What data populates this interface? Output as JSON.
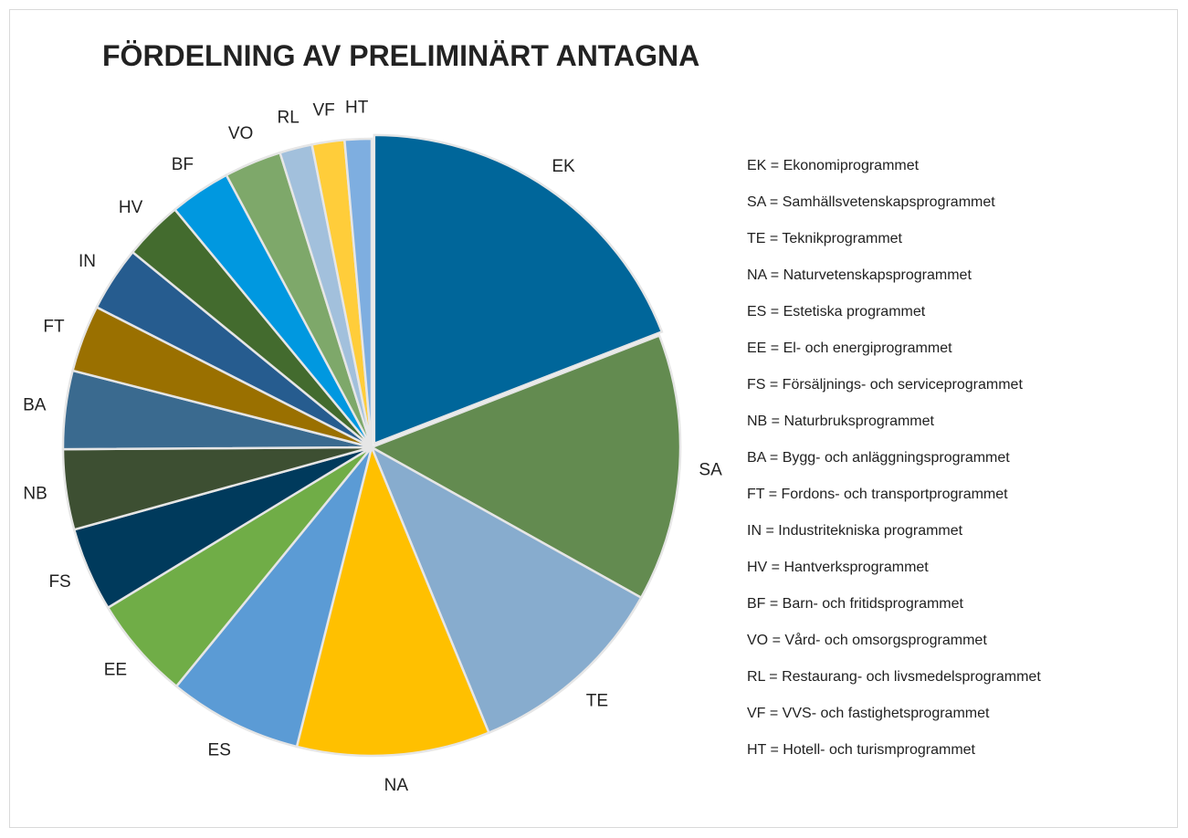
{
  "chart_data": {
    "type": "pie",
    "title": "FÖRDELNING AV PRELIMINÄRT ANTAGNA",
    "categories": [
      "EK",
      "SA",
      "TE",
      "NA",
      "ES",
      "EE",
      "FS",
      "NB",
      "BA",
      "FT",
      "IN",
      "HV",
      "BF",
      "VO",
      "RL",
      "VF",
      "HT"
    ],
    "values": [
      19.1,
      14,
      10.7,
      10.1,
      7,
      5.4,
      4.4,
      4.2,
      4.1,
      3.5,
      3.4,
      3.1,
      3.2,
      3,
      1.7,
      1.7,
      1.4
    ],
    "colors": [
      "#00669a",
      "#638b50",
      "#87acce",
      "#ffc000",
      "#5b9bd5",
      "#70ad47",
      "#003a5c",
      "#3d4f32",
      "#3a6a8f",
      "#9a7000",
      "#265c8f",
      "#436b2e",
      "#0098e0",
      "#7ea86a",
      "#a2c0dc",
      "#ffcd3a",
      "#7eaee0"
    ],
    "legend_entries": [
      "EK = Ekonomiprogrammet",
      "SA = Samhällsvetenskapsprogrammet",
      "TE = Teknikprogrammet",
      "NA = Naturvetenskapsprogrammet",
      "ES = Estetiska programmet",
      "EE = El- och energiprogrammet",
      "FS = Försäljnings- och serviceprogrammet",
      "NB = Naturbruksprogrammet",
      "BA = Bygg- och anläggningsprogrammet",
      "FT = Fordons- och transportprogrammet",
      "IN = Industritekniska programmet",
      "HV = Hantverksprogrammet",
      "BF = Barn- och fritidsprogrammet",
      "VO = Vård- och omsorgsprogrammet",
      "RL = Restaurang- och livsmedelsprogrammet",
      "VF = VVS- och fastighetsprogrammet",
      "HT = Hotell- och turismprogrammet"
    ]
  }
}
